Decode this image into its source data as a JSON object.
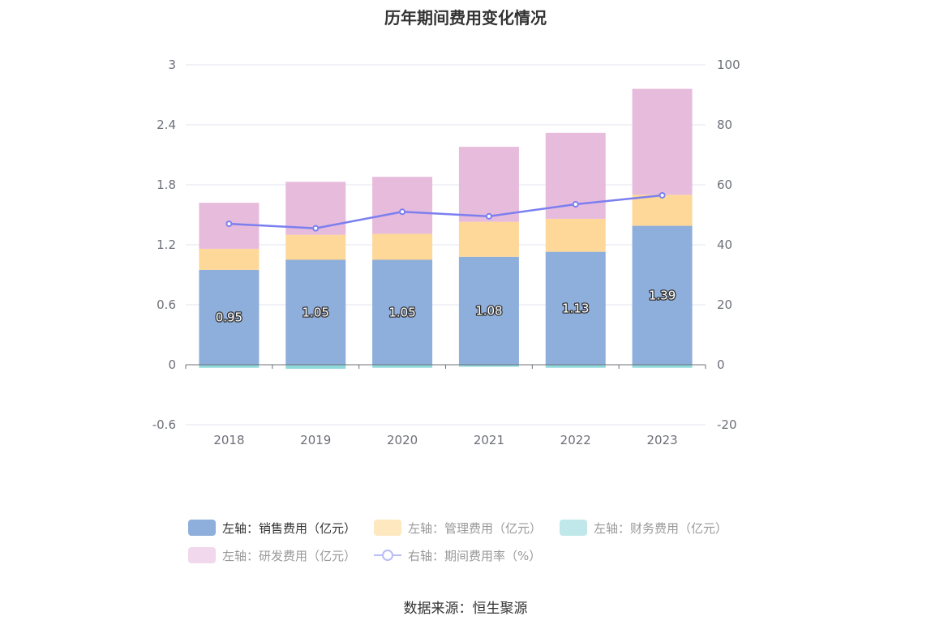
{
  "title": "历年期间费用变化情况",
  "source": "数据来源：恒生聚源",
  "legend": [
    {
      "label": "左轴：销售费用（亿元）",
      "color": "#8eaedb",
      "kind": "bar",
      "active": true
    },
    {
      "label": "左轴：管理费用（亿元）",
      "color": "#fde8c0",
      "kind": "bar",
      "active": false
    },
    {
      "label": "左轴：财务费用（亿元）",
      "color": "#c0e8ea",
      "kind": "bar",
      "active": false
    },
    {
      "label": "左轴：研发费用（亿元）",
      "color": "#f1d8ec",
      "kind": "bar",
      "active": false
    },
    {
      "label": "右轴：期间费用率（%）",
      "color": "#7b7ff0",
      "kind": "line",
      "active": false
    }
  ],
  "chart_data": {
    "type": "bar",
    "categories": [
      "2018",
      "2019",
      "2020",
      "2021",
      "2022",
      "2023"
    ],
    "stacked": true,
    "series": [
      {
        "name": "左轴：销售费用（亿元）",
        "axis": "left",
        "color": "#8eaedb",
        "values": [
          0.95,
          1.05,
          1.05,
          1.08,
          1.13,
          1.39
        ],
        "labels": [
          "0.95",
          "1.05",
          "1.05",
          "1.08",
          "1.13",
          "1.39"
        ]
      },
      {
        "name": "左轴：管理费用（亿元）",
        "axis": "left",
        "color": "#fdd899",
        "values": [
          0.21,
          0.25,
          0.26,
          0.35,
          0.33,
          0.31
        ]
      },
      {
        "name": "左轴：财务费用（亿元）",
        "axis": "left",
        "color": "#8fd8dc",
        "values": [
          -0.03,
          -0.04,
          -0.03,
          -0.02,
          -0.03,
          -0.03
        ]
      },
      {
        "name": "左轴：研发费用（亿元）",
        "axis": "left",
        "color": "#e7bbdc",
        "values": [
          0.46,
          0.53,
          0.57,
          0.75,
          0.86,
          1.06
        ]
      },
      {
        "name": "右轴：期间费用率（%）",
        "axis": "right",
        "type": "line",
        "color": "#7b7ff0",
        "values": [
          47,
          45.5,
          51,
          49.5,
          53.5,
          56.5
        ]
      }
    ],
    "left_axis": {
      "min": -0.6,
      "max": 3,
      "ticks": [
        "3",
        "2.4",
        "1.8",
        "1.2",
        "0.6",
        "0",
        "-0.6"
      ],
      "tick_values": [
        3,
        2.4,
        1.8,
        1.2,
        0.6,
        0,
        -0.6
      ]
    },
    "right_axis": {
      "min": -20,
      "max": 100,
      "ticks": [
        "100",
        "80",
        "60",
        "40",
        "20",
        "0",
        "-20"
      ],
      "tick_values": [
        100,
        80,
        60,
        40,
        20,
        0,
        -20
      ]
    },
    "grid": true
  }
}
